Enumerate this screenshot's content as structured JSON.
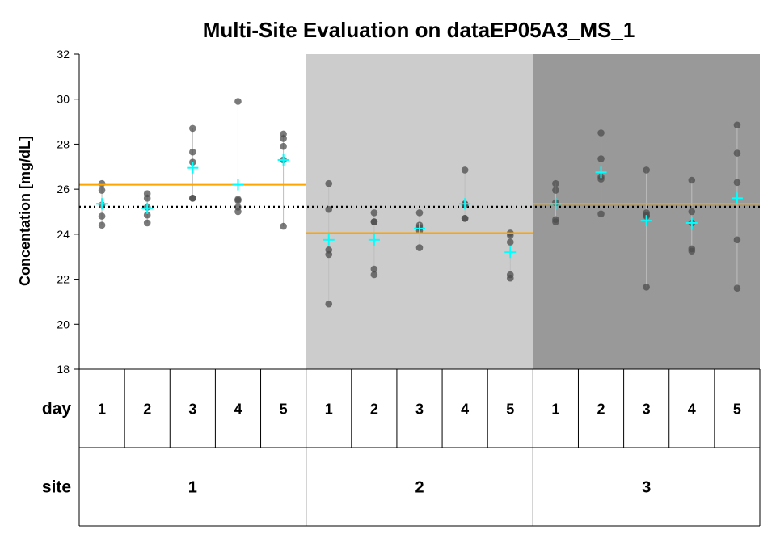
{
  "chart_data": {
    "type": "scatter",
    "title": "Multi-Site Evaluation on dataEP05A3_MS_1",
    "ylabel": "Concentation [mg/dL]",
    "ylim": [
      18,
      32
    ],
    "yticks": [
      "18",
      "20",
      "22",
      "24",
      "26",
      "28",
      "30",
      "32"
    ],
    "grand_mean": 25.22,
    "row_labels": {
      "day": "day",
      "site": "site"
    },
    "day_labels": [
      "1",
      "2",
      "3",
      "4",
      "5"
    ],
    "colors": {
      "site_backgrounds": [
        "#FFFFFF",
        "#CCCCCC",
        "#999999"
      ],
      "points": "#4d4d4d",
      "means": "#00FFFF",
      "site_mean_line": "#FFA500",
      "grand_mean_line": "#000000",
      "range_line": "#BEBEBE"
    },
    "sites": [
      {
        "label": "1",
        "mean": 26.2,
        "days": [
          {
            "day": "1",
            "values": [
              26.25,
              25.95,
              25.3,
              24.8,
              24.4
            ],
            "mean": 25.35
          },
          {
            "day": "2",
            "values": [
              25.8,
              25.6,
              25.2,
              24.85,
              24.5
            ],
            "mean": 25.15
          },
          {
            "day": "3",
            "values": [
              28.7,
              27.65,
              27.2,
              25.6,
              25.6
            ],
            "mean": 26.95
          },
          {
            "day": "4",
            "values": [
              29.9,
              25.55,
              25.5,
              25.2,
              25.0
            ],
            "mean": 26.2
          },
          {
            "day": "5",
            "values": [
              28.45,
              28.25,
              27.9,
              27.3,
              24.35
            ],
            "mean": 27.3
          }
        ]
      },
      {
        "label": "2",
        "mean": 24.05,
        "days": [
          {
            "day": "1",
            "values": [
              26.25,
              25.1,
              23.3,
              23.1,
              20.9
            ],
            "mean": 23.75
          },
          {
            "day": "2",
            "values": [
              24.95,
              24.55,
              24.55,
              22.45,
              22.2
            ],
            "mean": 23.75
          },
          {
            "day": "3",
            "values": [
              24.95,
              24.4,
              24.3,
              24.15,
              23.4
            ],
            "mean": 24.25
          },
          {
            "day": "4",
            "values": [
              26.85,
              25.35,
              25.3,
              24.7,
              24.7
            ],
            "mean": 25.35
          },
          {
            "day": "5",
            "values": [
              24.05,
              23.95,
              23.65,
              22.2,
              22.05
            ],
            "mean": 23.2
          }
        ]
      },
      {
        "label": "3",
        "mean": 25.35,
        "days": [
          {
            "day": "1",
            "values": [
              26.25,
              25.95,
              25.4,
              24.65,
              24.55
            ],
            "mean": 25.35
          },
          {
            "day": "2",
            "values": [
              28.5,
              27.35,
              26.55,
              26.45,
              24.9
            ],
            "mean": 26.75
          },
          {
            "day": "3",
            "values": [
              26.85,
              24.95,
              24.85,
              24.8,
              21.65
            ],
            "mean": 24.6
          },
          {
            "day": "4",
            "values": [
              26.4,
              25.0,
              24.5,
              23.35,
              23.25
            ],
            "mean": 24.5
          },
          {
            "day": "5",
            "values": [
              28.85,
              27.6,
              26.3,
              23.75,
              21.6
            ],
            "mean": 25.6
          }
        ]
      }
    ]
  }
}
